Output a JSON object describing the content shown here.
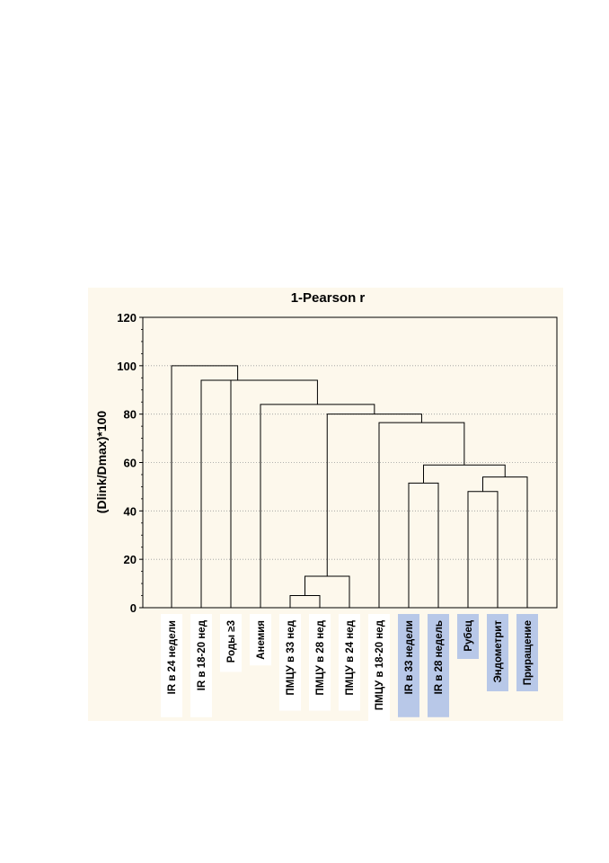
{
  "chart_data": {
    "type": "dendrogram",
    "title": "1-Pearson r",
    "ylabel": "(Dlink/Dmax)*100",
    "ylim": [
      0,
      120
    ],
    "yticks": [
      0,
      20,
      40,
      60,
      80,
      100,
      120
    ],
    "grid": true,
    "leaves": [
      "IR в 24 недели",
      "IR в 18-20 нед",
      "Роды ≥3",
      "Анемия",
      "ПМЦУ в 33 нед",
      "ПМЦУ в 28 нед",
      "ПМЦУ в 24 нед",
      "ПМЦУ в 18-20 нед",
      "IR в 33 недели",
      "IR в 28 недель",
      "Рубец",
      "Эндометрит",
      "Приращение"
    ],
    "highlighted_leaves": [
      "IR в 33 недели",
      "IR в 28 недель",
      "Рубец",
      "Эндометрит",
      "Приращение"
    ],
    "merges": [
      {
        "left": "ПМЦУ в 33 нед",
        "right": "ПМЦУ в 28 нед",
        "height": 5
      },
      {
        "left": "ПМЦУ в 33 нед + ПМЦУ в 28 нед",
        "right": "ПМЦУ в 24 нед",
        "height": 13
      },
      {
        "left": "IR в 33 недели",
        "right": "IR в 28 недель",
        "height": 51.5
      },
      {
        "left": "Рубец",
        "right": "Эндометрит",
        "height": 48
      },
      {
        "left": "Рубец + Эндометрит",
        "right": "Приращение",
        "height": 54
      },
      {
        "left": "IR в 33/28",
        "right": "Рубец + Эндометрит + Приращение",
        "height": 59
      },
      {
        "left": "ПМЦУ в 18-20 нед",
        "right": "IR/Рубец/Эндометрит/Приращение",
        "height": 76.5
      },
      {
        "left": "ПМЦУ cluster",
        "right": "ПМЦУ в 18-20 нед cluster",
        "height": 80
      },
      {
        "left": "Анемия",
        "right": "rest",
        "height": 84
      },
      {
        "left": "Роды ≥3",
        "right": "rest",
        "height": 94
      },
      {
        "left": "IR в 18-20 нед",
        "right": "rest",
        "height": 94
      },
      {
        "left": "IR в 24 недели",
        "right": "rest",
        "height": 100
      }
    ]
  },
  "colors": {
    "background": "#fdf8ec",
    "highlight": "#b8c8e8",
    "label_bg": "#ffffff",
    "line": "#000000",
    "grid": "#9a9a9a"
  }
}
